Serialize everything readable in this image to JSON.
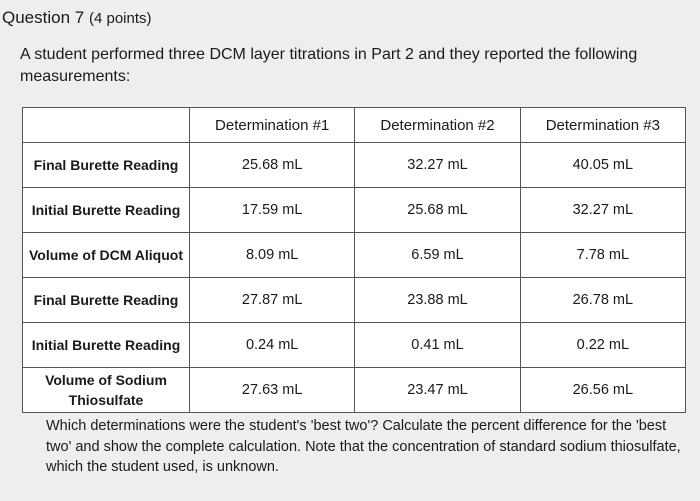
{
  "header": {
    "question": "Question 7",
    "points": "(4 points)"
  },
  "intro": "A student performed three DCM layer titrations in Part 2 and they reported the following measurements:",
  "table": {
    "columns": [
      "Determination #1",
      "Determination #2",
      "Determination #3"
    ],
    "rows": [
      [
        "Final Burette Reading",
        "25.68 mL",
        "32.27 mL",
        "40.05 mL"
      ],
      [
        "Initial Burette Reading",
        "17.59 mL",
        "25.68 mL",
        "32.27 mL"
      ],
      [
        "Volume of DCM Aliquot",
        "8.09 mL",
        "6.59 mL",
        "7.78 mL"
      ],
      [
        "Final Burette Reading",
        "27.87 mL",
        "23.88 mL",
        "26.78 mL"
      ],
      [
        "Initial Burette Reading",
        "0.24 mL",
        "0.41 mL",
        "0.22 mL"
      ],
      [
        "Volume of Sodium Thiosulfate",
        "27.63 mL",
        "23.47 mL",
        "26.56 mL"
      ]
    ]
  },
  "prompt": "Which determinations were the student's 'best two'? Calculate the percent difference for the 'best two' and show the complete calculation. Note that the concentration of standard sodium thiosulfate, which the student used, is unknown."
}
